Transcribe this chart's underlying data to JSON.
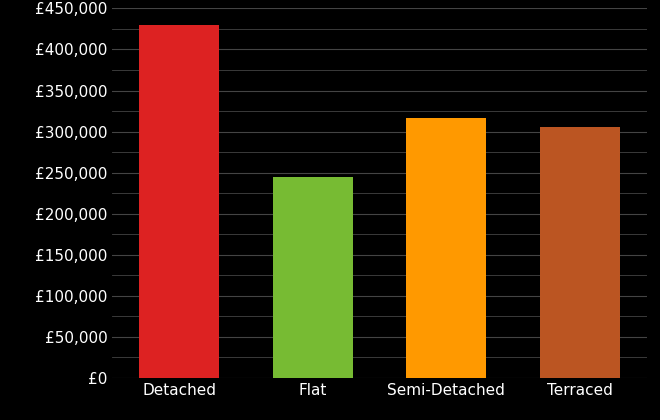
{
  "categories": [
    "Detached",
    "Flat",
    "Semi-Detached",
    "Terraced"
  ],
  "values": [
    430000,
    245000,
    317000,
    305000
  ],
  "bar_colors": [
    "#dd2222",
    "#77bb33",
    "#ff9900",
    "#bb5522"
  ],
  "background_color": "#000000",
  "text_color": "#ffffff",
  "grid_color": "#444444",
  "ylim": [
    0,
    450000
  ],
  "ytick_major_step": 50000,
  "ytick_minor_step": 25000,
  "tick_fontsize": 11,
  "bar_width": 0.6
}
